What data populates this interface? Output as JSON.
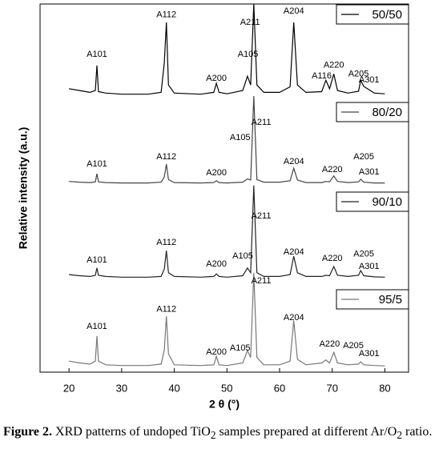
{
  "chart_data": {
    "type": "line",
    "xlabel": "2 θ (°)",
    "ylabel": "Relative intensity (a.u.)",
    "xlim": [
      14.5,
      84.5
    ],
    "xticks": [
      20,
      30,
      40,
      50,
      60,
      70,
      80
    ],
    "ylim": [
      0,
      100
    ],
    "x": [
      20,
      22,
      24,
      25,
      25.3,
      25.6,
      27,
      30,
      35,
      37.5,
      38.1,
      38.5,
      38.9,
      40,
      45,
      47.5,
      48,
      48.5,
      50,
      53,
      53.9,
      54.5,
      55.1,
      55.7,
      57,
      60,
      62,
      62.7,
      63.4,
      65,
      68,
      68.8,
      69.5,
      70.3,
      71,
      73,
      75,
      75.4,
      76,
      78,
      80
    ],
    "series": [
      {
        "name": "50/50",
        "color": "#000000",
        "values": [
          77,
          76.5,
          76,
          76.5,
          83.3,
          76.2,
          75.8,
          75.5,
          75.5,
          76,
          84,
          95,
          78,
          75.8,
          75.5,
          76,
          78.5,
          76,
          75.6,
          76.5,
          80.4,
          78,
          100,
          78,
          76,
          76,
          77.5,
          95,
          78,
          76,
          76.2,
          79.3,
          77,
          81,
          76.5,
          75.8,
          76.3,
          79.3,
          77.6,
          75.8,
          75.6
        ]
      },
      {
        "name": "80/20",
        "color": "#444444",
        "values": [
          51.8,
          51.6,
          51.5,
          51.7,
          53.9,
          51.7,
          51.5,
          51.4,
          51.4,
          51.6,
          53,
          56.5,
          52.3,
          51.5,
          51.4,
          51.5,
          52,
          51.5,
          51.4,
          51.6,
          52.5,
          52.2,
          75,
          52.3,
          51.6,
          51.6,
          52,
          55.4,
          52.2,
          51.5,
          51.5,
          51.8,
          51.7,
          53.3,
          51.8,
          51.5,
          51.7,
          52.4,
          51.6,
          51.4,
          51.4
        ]
      },
      {
        "name": "90/10",
        "color": "#222222",
        "values": [
          26.5,
          26.2,
          26,
          26.3,
          28.3,
          26.3,
          26,
          25.8,
          25.8,
          26,
          28,
          33,
          27,
          26,
          25.8,
          26,
          26.7,
          26,
          25.8,
          26.2,
          28.3,
          27,
          50.7,
          27,
          26,
          26,
          26.5,
          31.5,
          27,
          26,
          26,
          26.3,
          26.2,
          28.7,
          26.3,
          26,
          26.3,
          27.6,
          26.2,
          25.9,
          25.8
        ]
      },
      {
        "name": "95/5",
        "color": "#777777",
        "values": [
          3,
          2.5,
          2.2,
          3,
          9.8,
          3,
          2,
          1.8,
          1.8,
          2.2,
          6,
          15.2,
          5,
          2,
          1.8,
          2,
          4.3,
          2,
          1.8,
          2.5,
          5.9,
          4,
          27,
          4,
          2,
          2,
          3,
          14,
          3.5,
          2,
          2.5,
          3.3,
          2.5,
          5.4,
          2.5,
          2,
          2.2,
          2.8,
          2,
          1.8,
          1.7
        ]
      }
    ],
    "annotations": [
      {
        "text": "A101",
        "x": 25.3,
        "y": 86.3
      },
      {
        "text": "A112",
        "x": 38.5,
        "y": 97
      },
      {
        "text": "A200",
        "x": 48,
        "y": 79.8
      },
      {
        "text": "A105",
        "x": 54,
        "y": 86.3
      },
      {
        "text": "A211",
        "x": 54.4,
        "y": 95
      },
      {
        "text": "A204",
        "x": 62.7,
        "y": 98
      },
      {
        "text": "A116",
        "x": 68,
        "y": 80.4
      },
      {
        "text": "A220",
        "x": 70.3,
        "y": 83.3
      },
      {
        "text": "A205",
        "x": 75,
        "y": 81
      },
      {
        "text": "A301",
        "x": 77,
        "y": 79.3
      },
      {
        "text": "A211",
        "x": 56.5,
        "y": 67.8
      },
      {
        "text": "A105",
        "x": 52.5,
        "y": 63.7
      },
      {
        "text": "A101",
        "x": 25.3,
        "y": 56.5
      },
      {
        "text": "A112",
        "x": 38.5,
        "y": 58.5
      },
      {
        "text": "A200",
        "x": 48,
        "y": 54.1
      },
      {
        "text": "A204",
        "x": 62.7,
        "y": 57.2
      },
      {
        "text": "A220",
        "x": 70,
        "y": 55
      },
      {
        "text": "A205",
        "x": 76,
        "y": 58.5
      },
      {
        "text": "A301",
        "x": 77,
        "y": 54.3
      },
      {
        "text": "A211",
        "x": 56.5,
        "y": 42.4
      },
      {
        "text": "A101",
        "x": 25.3,
        "y": 30.4
      },
      {
        "text": "A112",
        "x": 38.5,
        "y": 35.2
      },
      {
        "text": "A200",
        "x": 48,
        "y": 29.3
      },
      {
        "text": "A105",
        "x": 53,
        "y": 31.5
      },
      {
        "text": "A204",
        "x": 62.7,
        "y": 32.6
      },
      {
        "text": "A220",
        "x": 70,
        "y": 30.9
      },
      {
        "text": "A205",
        "x": 76,
        "y": 32
      },
      {
        "text": "A301",
        "x": 77,
        "y": 28.7
      },
      {
        "text": "A211",
        "x": 56.5,
        "y": 24.8
      },
      {
        "text": "A101",
        "x": 25.3,
        "y": 12.4
      },
      {
        "text": "A112",
        "x": 38.5,
        "y": 17
      },
      {
        "text": "A200",
        "x": 48,
        "y": 5.4
      },
      {
        "text": "A105",
        "x": 52.5,
        "y": 6.5
      },
      {
        "text": "A204",
        "x": 62.7,
        "y": 14.8
      },
      {
        "text": "A220",
        "x": 69.5,
        "y": 7.6
      },
      {
        "text": "A205",
        "x": 74,
        "y": 7.2
      },
      {
        "text": "A301",
        "x": 77,
        "y": 5
      }
    ]
  },
  "caption": {
    "label": "Figure 2.",
    "parts": [
      " XRD patterns of undoped TiO",
      "2",
      " samples prepared at different Ar/O",
      "2",
      " ratio."
    ]
  }
}
